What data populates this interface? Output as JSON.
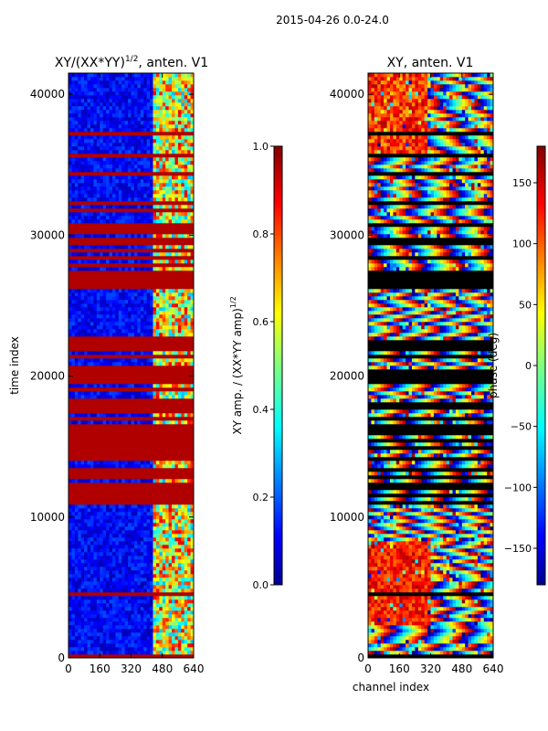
{
  "suptitle": "2015-04-26 0.0-24.0",
  "chart_data": [
    {
      "type": "heatmap",
      "title_main": "XY/(XX*YY)",
      "title_exp": "1/2",
      "title_rest": ", anten. V1",
      "xlabel": "",
      "ylabel": "time index",
      "xlim": [
        0,
        640
      ],
      "ylim": [
        0,
        41500
      ],
      "xticks": [
        0,
        160,
        320,
        480,
        640
      ],
      "yticks": [
        0,
        10000,
        20000,
        30000,
        40000
      ],
      "colormap": "jet",
      "colorbar": {
        "label_main": "XY amp. / (XX*YY amp)",
        "label_exp": "1/2",
        "range": [
          0.0,
          1.0
        ],
        "ticks": [
          "0.0",
          "0.2",
          "0.4",
          "0.6",
          "0.8",
          "1.0"
        ]
      }
    },
    {
      "type": "heatmap",
      "title": "XY, anten. V1",
      "xlabel": "channel index",
      "ylabel": "",
      "xlim": [
        0,
        640
      ],
      "ylim": [
        0,
        41500
      ],
      "xticks": [
        0,
        160,
        320,
        480,
        640
      ],
      "yticks": [
        0,
        10000,
        20000,
        30000,
        40000
      ],
      "colormap": "jet",
      "colorbar": {
        "label": "phase (deg)",
        "range": [
          -180,
          180
        ],
        "ticks": [
          "−150",
          "−100",
          "−50",
          "0",
          "50",
          "100",
          "150"
        ]
      }
    }
  ],
  "colors": {
    "dark_blue": "#00008f",
    "blue": "#0000ff",
    "cyan": "#00ffff",
    "yellow": "#ffff00",
    "red": "#ff0000",
    "dark_red": "#800000"
  }
}
